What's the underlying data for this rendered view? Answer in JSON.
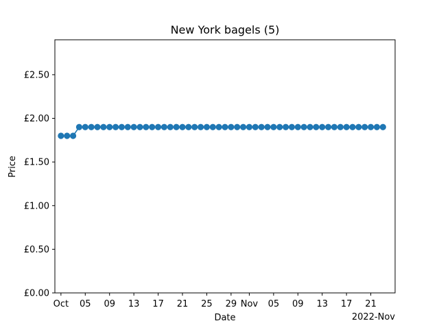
{
  "chart_data": {
    "type": "line",
    "title": "New York bagels (5)",
    "xlabel": "Date",
    "ylabel": "Price",
    "x_offset_label": "2022-Nov",
    "ylim": [
      0,
      2.9
    ],
    "xlim": [
      "2022-09-30",
      "2022-11-25"
    ],
    "grid": false,
    "y_ticks": [
      {
        "value": 0.0,
        "label": "£0.00"
      },
      {
        "value": 0.5,
        "label": "£0.50"
      },
      {
        "value": 1.0,
        "label": "£1.00"
      },
      {
        "value": 1.5,
        "label": "£1.50"
      },
      {
        "value": 2.0,
        "label": "£2.00"
      },
      {
        "value": 2.5,
        "label": "£2.50"
      }
    ],
    "x_ticks": [
      {
        "date": "2022-10-01",
        "label": "Oct"
      },
      {
        "date": "2022-10-05",
        "label": "05"
      },
      {
        "date": "2022-10-09",
        "label": "09"
      },
      {
        "date": "2022-10-13",
        "label": "13"
      },
      {
        "date": "2022-10-17",
        "label": "17"
      },
      {
        "date": "2022-10-21",
        "label": "21"
      },
      {
        "date": "2022-10-25",
        "label": "25"
      },
      {
        "date": "2022-10-29",
        "label": "29"
      },
      {
        "date": "2022-11-01",
        "label": "Nov"
      },
      {
        "date": "2022-11-05",
        "label": "05"
      },
      {
        "date": "2022-11-09",
        "label": "09"
      },
      {
        "date": "2022-11-13",
        "label": "13"
      },
      {
        "date": "2022-11-17",
        "label": "17"
      },
      {
        "date": "2022-11-21",
        "label": "21"
      }
    ],
    "series": [
      {
        "color": "#1f77b4",
        "x": [
          "2022-10-01",
          "2022-10-02",
          "2022-10-03",
          "2022-10-04",
          "2022-10-05",
          "2022-10-06",
          "2022-10-07",
          "2022-10-08",
          "2022-10-09",
          "2022-10-10",
          "2022-10-11",
          "2022-10-12",
          "2022-10-13",
          "2022-10-14",
          "2022-10-15",
          "2022-10-16",
          "2022-10-17",
          "2022-10-18",
          "2022-10-19",
          "2022-10-20",
          "2022-10-21",
          "2022-10-22",
          "2022-10-23",
          "2022-10-24",
          "2022-10-25",
          "2022-10-26",
          "2022-10-27",
          "2022-10-28",
          "2022-10-29",
          "2022-10-30",
          "2022-10-31",
          "2022-11-01",
          "2022-11-02",
          "2022-11-03",
          "2022-11-04",
          "2022-11-05",
          "2022-11-06",
          "2022-11-07",
          "2022-11-08",
          "2022-11-09",
          "2022-11-10",
          "2022-11-11",
          "2022-11-12",
          "2022-11-13",
          "2022-11-14",
          "2022-11-15",
          "2022-11-16",
          "2022-11-17",
          "2022-11-18",
          "2022-11-19",
          "2022-11-20",
          "2022-11-21",
          "2022-11-22",
          "2022-11-23"
        ],
        "y": [
          1.8,
          1.8,
          1.8,
          1.9,
          1.9,
          1.9,
          1.9,
          1.9,
          1.9,
          1.9,
          1.9,
          1.9,
          1.9,
          1.9,
          1.9,
          1.9,
          1.9,
          1.9,
          1.9,
          1.9,
          1.9,
          1.9,
          1.9,
          1.9,
          1.9,
          1.9,
          1.9,
          1.9,
          1.9,
          1.9,
          1.9,
          1.9,
          1.9,
          1.9,
          1.9,
          1.9,
          1.9,
          1.9,
          1.9,
          1.9,
          1.9,
          1.9,
          1.9,
          1.9,
          1.9,
          1.9,
          1.9,
          1.9,
          1.9,
          1.9,
          1.9,
          1.9,
          1.9,
          1.9
        ]
      }
    ]
  }
}
